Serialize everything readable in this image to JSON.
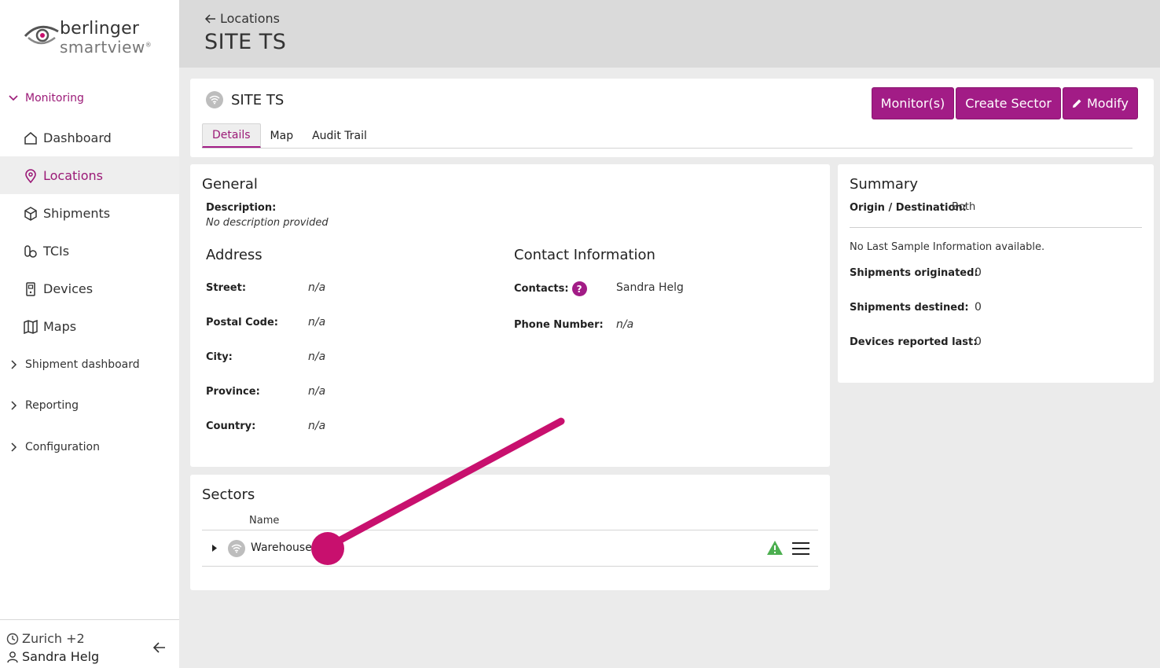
{
  "brand": {
    "line1": "berlinger",
    "line2": "smartview",
    "reg": "®"
  },
  "sidebar": {
    "monitoring": "Monitoring",
    "items": [
      {
        "label": "Dashboard",
        "icon": "home-icon"
      },
      {
        "label": "Locations",
        "icon": "map-pin-icon"
      },
      {
        "label": "Shipments",
        "icon": "box-icon"
      },
      {
        "label": "TCIs",
        "icon": "tci-icon"
      },
      {
        "label": "Devices",
        "icon": "device-icon"
      },
      {
        "label": "Maps",
        "icon": "map-icon"
      }
    ],
    "shipment_dashboard": "Shipment dashboard",
    "reporting": "Reporting",
    "configuration": "Configuration",
    "timezone": "Zurich +2",
    "user": "Sandra Helg"
  },
  "header": {
    "back_label": "Locations",
    "title": "SITE TS"
  },
  "site": {
    "name": "SITE TS",
    "buttons": {
      "monitors": "Monitor(s)",
      "create_sector": "Create Sector",
      "modify": "Modify"
    },
    "tabs": [
      "Details",
      "Map",
      "Audit Trail"
    ]
  },
  "general": {
    "title": "General",
    "description_label": "Description:",
    "description_value": "No description provided"
  },
  "address": {
    "title": "Address",
    "street_label": "Street:",
    "street_value": "n/a",
    "postal_label": "Postal Code:",
    "postal_value": "n/a",
    "city_label": "City:",
    "city_value": "n/a",
    "province_label": "Province:",
    "province_value": "n/a",
    "country_label": "Country:",
    "country_value": "n/a"
  },
  "contact": {
    "title": "Contact Information",
    "contacts_label": "Contacts:",
    "help": "?",
    "contacts_value": "Sandra Helg",
    "phone_label": "Phone Number:",
    "phone_value": "n/a"
  },
  "summary": {
    "title": "Summary",
    "origin_label": "Origin / Destination:",
    "origin_value": "Both",
    "no_sample": "No Last Sample Information available.",
    "originated_label": "Shipments originated:",
    "originated_value": "0",
    "destined_label": "Shipments destined:",
    "destined_value": "0",
    "devices_label": "Devices reported last:",
    "devices_value": "0"
  },
  "sectors": {
    "title": "Sectors",
    "col_name": "Name",
    "rows": [
      {
        "name": "Warehouse"
      }
    ]
  },
  "colors": {
    "accent": "#a21c86",
    "warning": "#4caf50",
    "pointer": "#c8106e"
  }
}
